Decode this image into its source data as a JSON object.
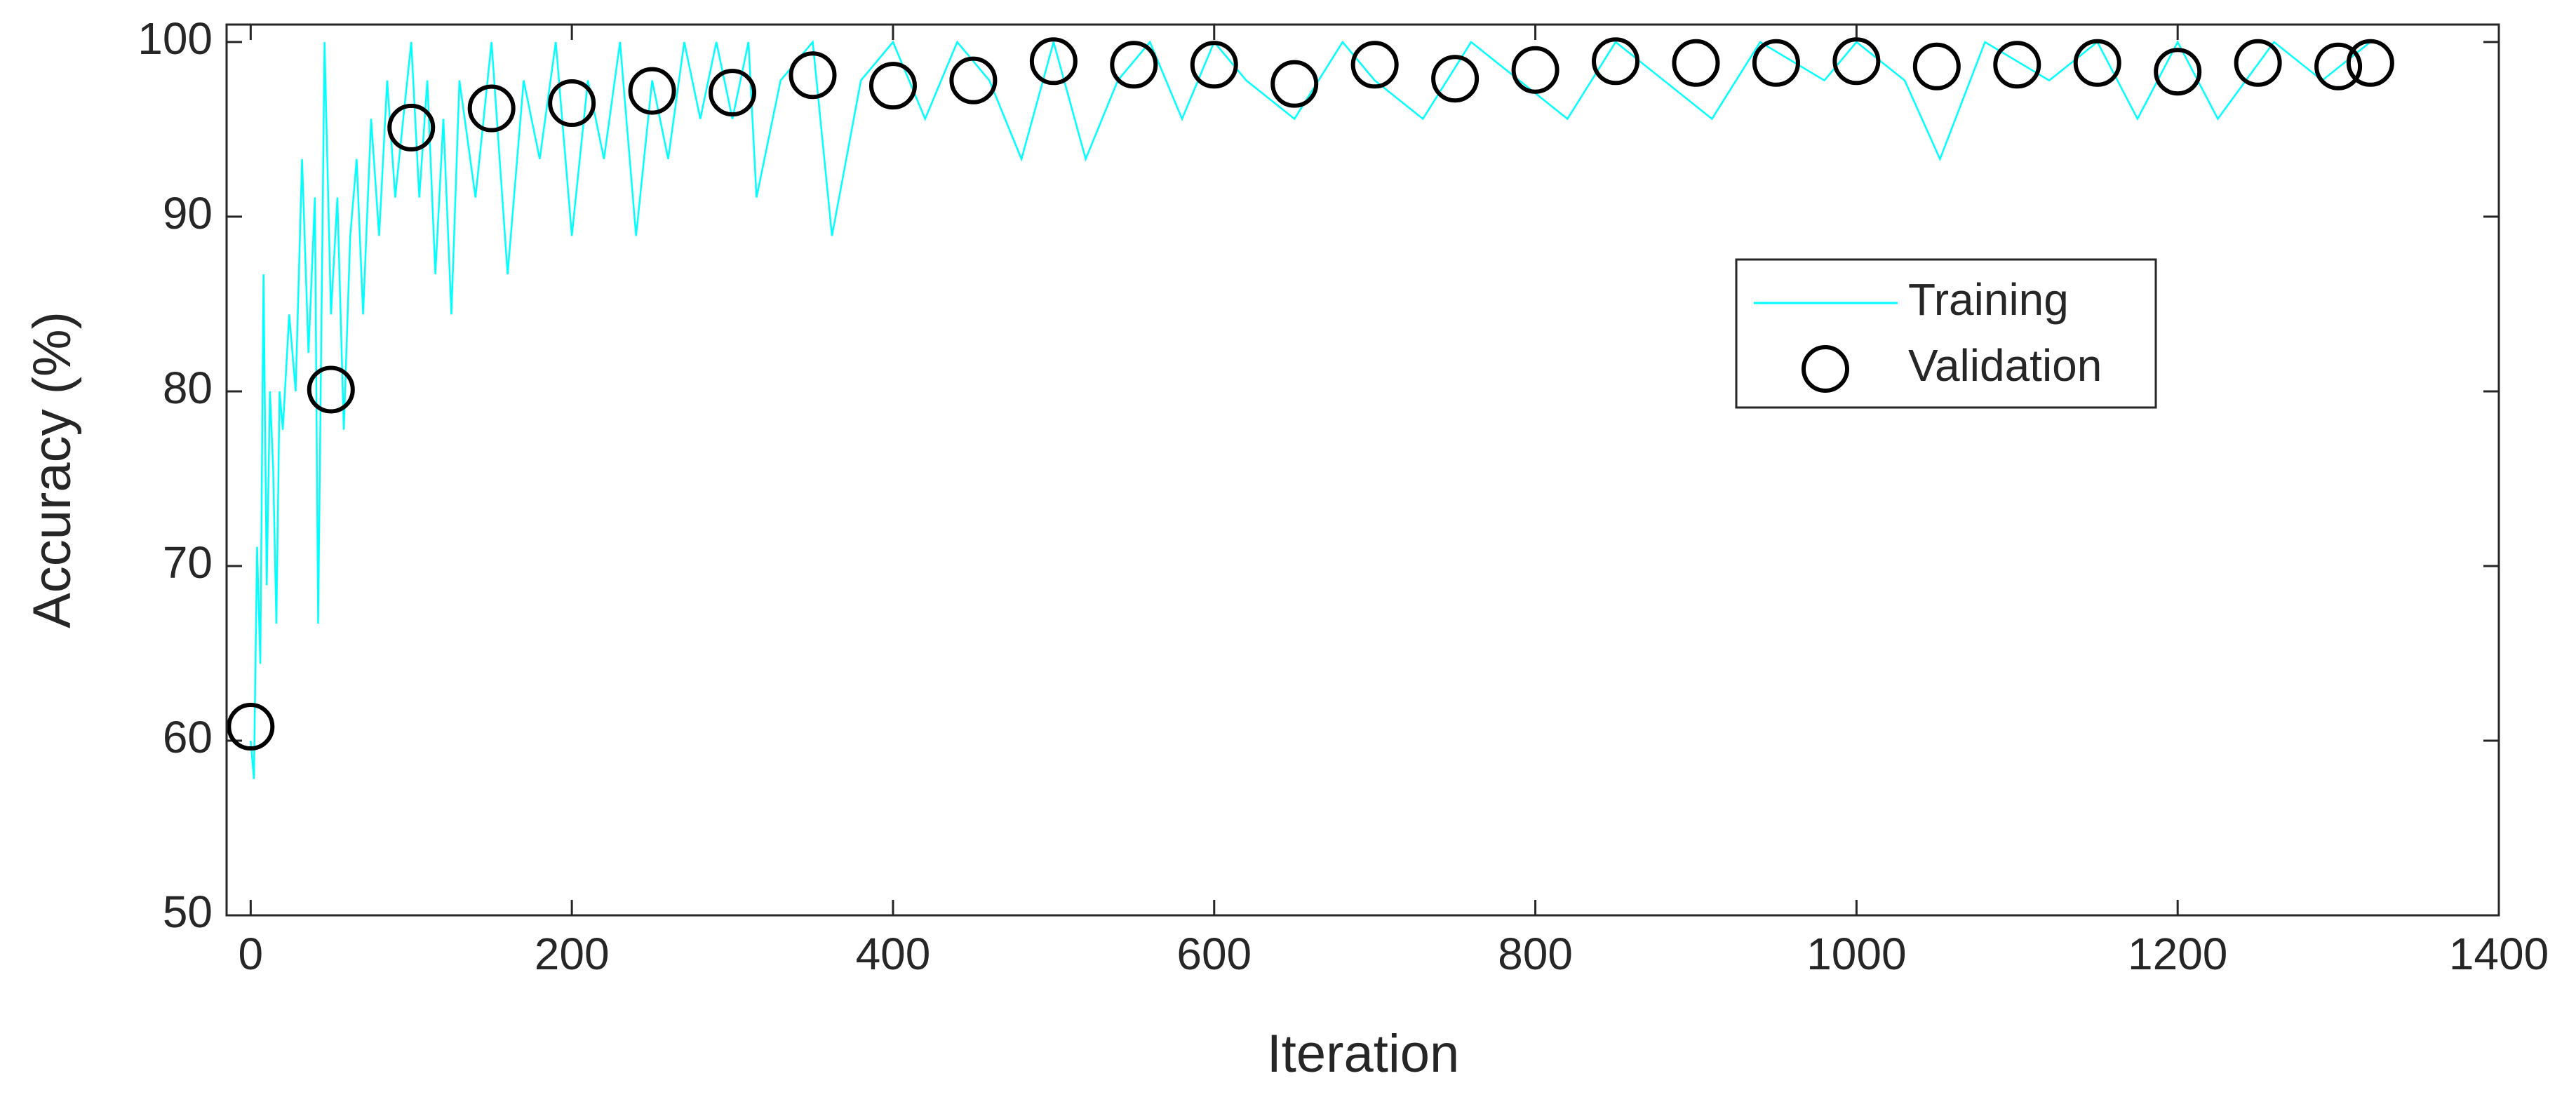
{
  "chart_data": {
    "type": "line",
    "xlabel": "Iteration",
    "ylabel": "Accuracy (%)",
    "xlim": [
      -15,
      1400
    ],
    "ylim": [
      50,
      101
    ],
    "xticks": [
      0,
      200,
      400,
      600,
      800,
      1000,
      1200,
      1400
    ],
    "yticks": [
      50,
      60,
      70,
      80,
      90,
      100
    ],
    "legend": "upper right",
    "series": [
      {
        "name": "Training",
        "color": "#00ffff",
        "style": "line",
        "x": [
          0,
          2,
          4,
          6,
          8,
          10,
          12,
          14,
          16,
          18,
          20,
          24,
          28,
          32,
          36,
          40,
          42,
          46,
          50,
          54,
          58,
          62,
          66,
          70,
          75,
          80,
          85,
          90,
          95,
          100,
          105,
          110,
          115,
          120,
          125,
          130,
          140,
          150,
          160,
          170,
          180,
          190,
          200,
          210,
          220,
          230,
          240,
          250,
          260,
          270,
          280,
          290,
          300,
          310,
          315,
          330,
          350,
          362,
          380,
          400,
          420,
          440,
          460,
          480,
          500,
          520,
          540,
          560,
          580,
          600,
          620,
          650,
          680,
          700,
          730,
          760,
          790,
          820,
          850,
          880,
          910,
          940,
          980,
          1000,
          1030,
          1052,
          1080,
          1120,
          1150,
          1175,
          1200,
          1225,
          1260,
          1290,
          1320
        ],
        "values": [
          60,
          57.8,
          71.1,
          64.4,
          86.7,
          68.9,
          80,
          75.6,
          66.7,
          80,
          77.8,
          84.4,
          80,
          93.3,
          82.2,
          91.1,
          66.7,
          100,
          84.4,
          91.1,
          77.8,
          88.9,
          93.3,
          84.4,
          95.6,
          88.9,
          97.8,
          91.1,
          95.6,
          100,
          91.1,
          97.8,
          86.7,
          95.6,
          84.4,
          97.8,
          91.1,
          100,
          86.7,
          97.8,
          93.3,
          100,
          88.9,
          97.8,
          93.3,
          100,
          88.9,
          97.8,
          93.3,
          100,
          95.6,
          100,
          95.6,
          100,
          91.1,
          97.8,
          100,
          88.9,
          97.8,
          100,
          95.6,
          100,
          97.8,
          93.3,
          100,
          93.3,
          97.8,
          100,
          95.6,
          100,
          97.8,
          95.6,
          100,
          97.8,
          95.6,
          100,
          97.8,
          95.6,
          100,
          97.8,
          95.6,
          100,
          97.8,
          100,
          97.8,
          93.3,
          100,
          97.8,
          100,
          95.6,
          100,
          95.6,
          100,
          97.8,
          100
        ]
      },
      {
        "name": "Validation",
        "color": "#000000",
        "style": "circle",
        "x": [
          0,
          50,
          100,
          150,
          200,
          250,
          300,
          350,
          400,
          450,
          500,
          550,
          600,
          650,
          700,
          750,
          800,
          850,
          900,
          950,
          1000,
          1050,
          1100,
          1150,
          1200,
          1250,
          1300,
          1320
        ],
        "values": [
          60.8,
          80.1,
          95.1,
          96.2,
          96.5,
          97.2,
          97.1,
          98.1,
          97.5,
          97.8,
          98.9,
          98.7,
          98.7,
          97.6,
          98.7,
          97.9,
          98.4,
          98.9,
          98.8,
          98.8,
          98.9,
          98.6,
          98.7,
          98.8,
          98.3,
          98.8,
          98.6,
          98.8
        ]
      }
    ]
  }
}
